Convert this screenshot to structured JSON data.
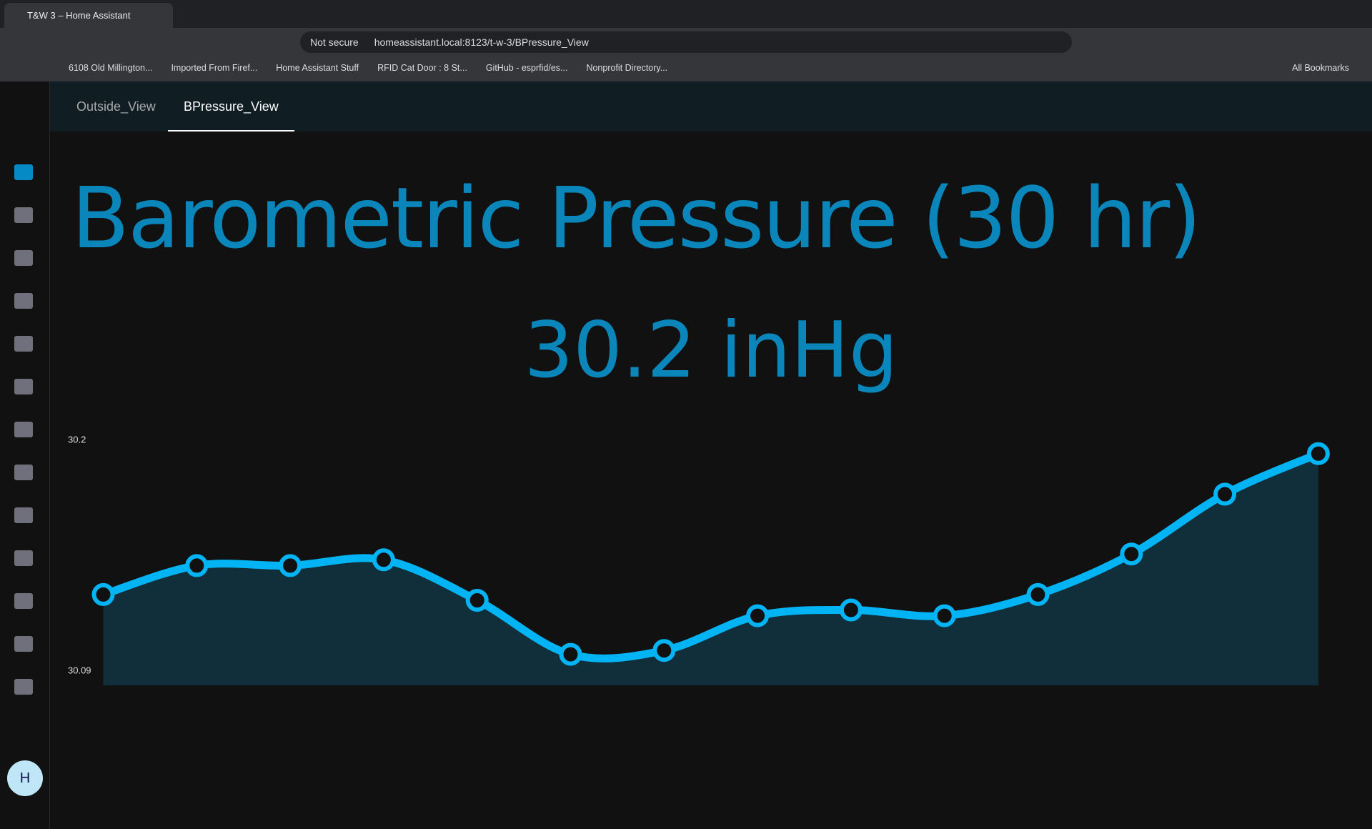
{
  "browser": {
    "tab_title": "T&W 3 – Home Assistant",
    "security": "Not secure",
    "url": "homeassistant.local:8123/t-w-3/BPressure_View",
    "bookmarks": [
      "6108 Old Millington...",
      "Imported From Firef...",
      "Home Assistant Stuff",
      "RFID Cat Door : 8 St...",
      "GitHub - esprfid/es...",
      "Nonprofit Directory..."
    ],
    "all_bookmarks": "All Bookmarks"
  },
  "app": {
    "tabs": [
      "Outside_View",
      "BPressure_View"
    ],
    "avatar": "H"
  },
  "chart_data": {
    "type": "line",
    "title": "Barometric Pressure (30 hr)",
    "state": 30.2,
    "unit": "inHg",
    "values": [
      30.123,
      30.138,
      30.138,
      30.141,
      30.12,
      30.092,
      30.094,
      30.112,
      30.115,
      30.112,
      30.123,
      30.144,
      30.175,
      30.196
    ],
    "color": "#03b4f4",
    "fill": "#102f3b",
    "points": true,
    "ylim": [
      30.09,
      30.2
    ],
    "yticks": [
      30.09,
      30.2
    ]
  }
}
